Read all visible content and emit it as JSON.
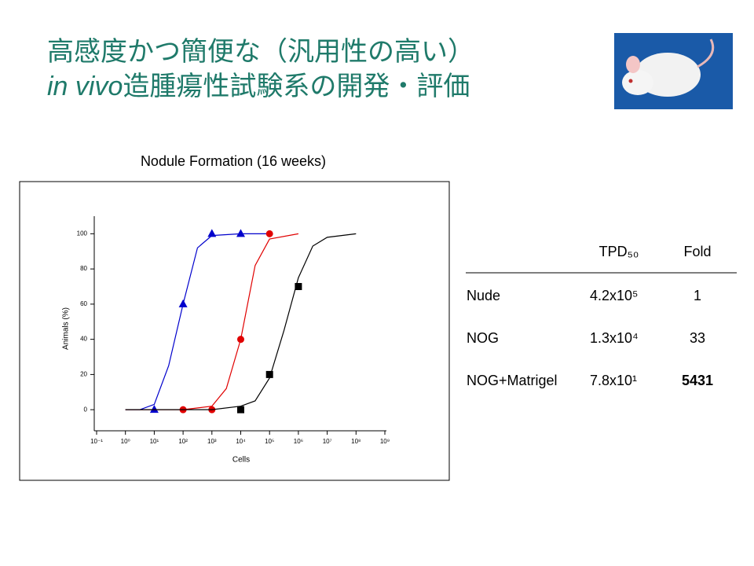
{
  "slide": {
    "title_line1": "高感度かつ簡便な（汎用性の高い）",
    "title_line2_italic": "in vivo",
    "title_line2_rest": "造腫瘍性試験系の開発・評価"
  },
  "chart_data": {
    "type": "scatter",
    "title": "Nodule Formation (16 weeks)",
    "x_label": "Cells",
    "y_label": "Animals (%)",
    "xscale": "log",
    "xlim": [
      0.1,
      1000000000
    ],
    "ylim": [
      -12,
      110
    ],
    "xticks": [
      {
        "value": 0.1,
        "label": "10⁻¹"
      },
      {
        "value": 1,
        "label": "10⁰"
      },
      {
        "value": 10,
        "label": "10¹"
      },
      {
        "value": 100,
        "label": "10²"
      },
      {
        "value": 1000,
        "label": "10³"
      },
      {
        "value": 10000,
        "label": "10⁴"
      },
      {
        "value": 100000,
        "label": "10⁵"
      },
      {
        "value": 1000000,
        "label": "10⁶"
      },
      {
        "value": 10000000,
        "label": "10⁷"
      },
      {
        "value": 100000000,
        "label": "10⁸"
      },
      {
        "value": 1000000000,
        "label": "10⁹"
      }
    ],
    "yticks": [
      0,
      20,
      40,
      60,
      80,
      100
    ],
    "series": [
      {
        "color": "#0000cc",
        "marker": "triangle",
        "x": [
          10,
          100,
          1000,
          10000
        ],
        "values": [
          0,
          60,
          100,
          100
        ],
        "fit_x": [
          1,
          3.16,
          10,
          31.6,
          100,
          316,
          1000,
          10000,
          100000
        ],
        "fit_values": [
          0,
          0,
          3,
          25,
          60,
          92,
          99,
          100,
          100
        ]
      },
      {
        "color": "#e00000",
        "marker": "circle",
        "x": [
          100,
          1000,
          10000,
          100000
        ],
        "values": [
          0,
          0,
          40,
          100
        ],
        "fit_x": [
          1,
          10,
          100,
          1000,
          3162,
          10000,
          31623,
          100000,
          1000000
        ],
        "fit_values": [
          0,
          0,
          0,
          2,
          12,
          40,
          82,
          97,
          100
        ]
      },
      {
        "color": "#000000",
        "marker": "square",
        "x": [
          10000,
          100000,
          1000000
        ],
        "values": [
          0,
          20,
          70
        ],
        "fit_x": [
          1,
          1000,
          10000,
          31623,
          100000,
          316228,
          1000000,
          3162278,
          10000000,
          100000000
        ],
        "fit_values": [
          0,
          0,
          2,
          5,
          18,
          45,
          75,
          93,
          98,
          100
        ]
      }
    ]
  },
  "table": {
    "columns": [
      "TPD₅₀",
      "Fold"
    ],
    "rows": [
      [
        "Nude",
        "4.2x10⁵",
        "1"
      ],
      [
        "NOG",
        "1.3x10⁴",
        "33"
      ],
      [
        "NOG+Matrigel",
        "7.8x10¹",
        "5431"
      ]
    ]
  }
}
